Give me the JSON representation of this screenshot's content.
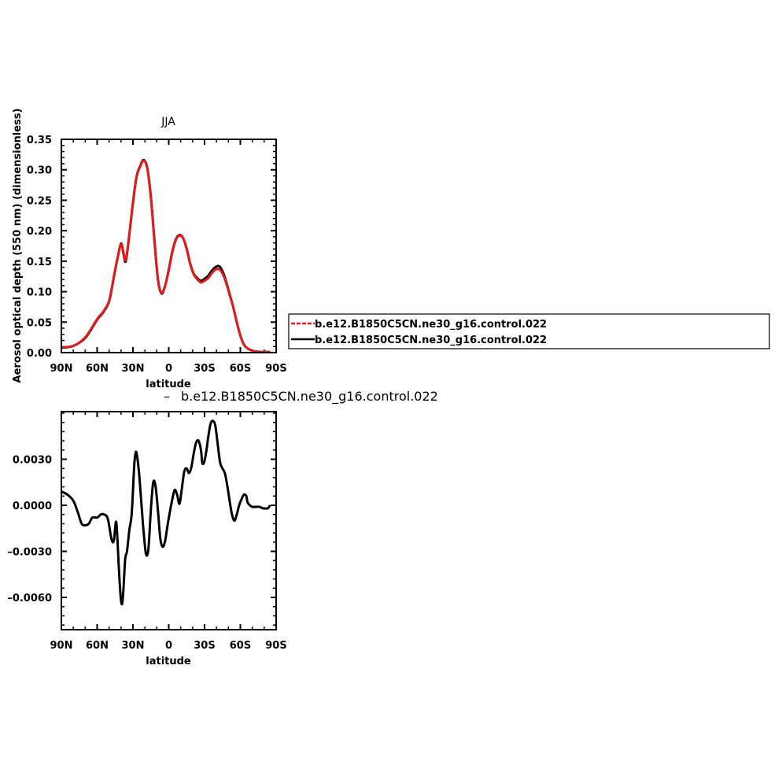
{
  "chart_data": [
    {
      "type": "line",
      "title": "JJA",
      "xlabel": "latitude",
      "ylabel": "Aerosol optical depth (550 nm) (dimensionless)",
      "xlim": [
        90,
        -90
      ],
      "ylim": [
        0,
        0.35
      ],
      "x_ticks": [
        90,
        60,
        30,
        0,
        -30,
        -60,
        -90
      ],
      "x_tick_labels": [
        "90N",
        "60N",
        "30N",
        "0",
        "30S",
        "60S",
        "90S"
      ],
      "y_ticks": [
        0,
        0.05,
        0.1,
        0.15,
        0.2,
        0.25,
        0.3,
        0.35
      ],
      "y_tick_labels": [
        "0.00",
        "0.05",
        "0.10",
        "0.15",
        "0.20",
        "0.25",
        "0.30",
        "0.35"
      ],
      "legend": {
        "placement": "right",
        "entries": [
          {
            "label": "b.e12.B1850C5CN.ne30_g16.control.022",
            "color": "#e41a1c",
            "dashed": true
          },
          {
            "label": "b.e12.B1850C5CN.ne30_g16.control.022",
            "color": "#000000",
            "dashed": false
          }
        ]
      },
      "series": [
        {
          "name": "b.e12.B1850C5CN.ne30_g16.control.022",
          "color": "#e41a1c",
          "x": [
            90,
            80,
            70,
            60,
            55,
            50,
            46,
            43,
            40,
            38,
            36,
            33,
            30,
            27,
            24,
            21,
            18,
            15,
            12,
            9,
            6,
            3,
            0,
            -3,
            -6,
            -9,
            -12,
            -15,
            -18,
            -21,
            -24,
            -27,
            -30,
            -33,
            -36,
            -39,
            -42,
            -45,
            -48,
            -51,
            -54,
            -57,
            -60,
            -63,
            -66,
            -69,
            -72,
            -75,
            -80,
            -85
          ],
          "y": [
            0.009,
            0.011,
            0.025,
            0.055,
            0.067,
            0.085,
            0.125,
            0.155,
            0.178,
            0.165,
            0.152,
            0.195,
            0.245,
            0.288,
            0.305,
            0.315,
            0.302,
            0.255,
            0.185,
            0.12,
            0.098,
            0.11,
            0.135,
            0.165,
            0.185,
            0.192,
            0.188,
            0.17,
            0.145,
            0.128,
            0.12,
            0.115,
            0.118,
            0.122,
            0.13,
            0.136,
            0.137,
            0.13,
            0.115,
            0.095,
            0.075,
            0.05,
            0.028,
            0.013,
            0.007,
            0.004,
            0.002,
            0.0015,
            0.001,
            0.001
          ]
        },
        {
          "name": "b.e12.B1850C5CN.ne30_g16.control.022",
          "color": "#000000",
          "x": [
            90,
            80,
            70,
            60,
            55,
            50,
            46,
            43,
            40,
            38,
            36,
            33,
            30,
            27,
            24,
            21,
            18,
            15,
            12,
            9,
            6,
            3,
            0,
            -3,
            -6,
            -9,
            -12,
            -15,
            -18,
            -21,
            -24,
            -27,
            -30,
            -33,
            -36,
            -39,
            -42,
            -45,
            -48,
            -51,
            -54,
            -57,
            -60,
            -63,
            -66,
            -69,
            -72,
            -75,
            -80,
            -85
          ],
          "y": [
            0.008,
            0.011,
            0.024,
            0.054,
            0.066,
            0.084,
            0.124,
            0.154,
            0.179,
            0.163,
            0.15,
            0.194,
            0.246,
            0.289,
            0.306,
            0.316,
            0.303,
            0.256,
            0.184,
            0.119,
            0.097,
            0.11,
            0.136,
            0.166,
            0.186,
            0.193,
            0.188,
            0.171,
            0.146,
            0.129,
            0.122,
            0.118,
            0.121,
            0.126,
            0.134,
            0.14,
            0.142,
            0.134,
            0.117,
            0.096,
            0.075,
            0.05,
            0.028,
            0.013,
            0.007,
            0.004,
            0.002,
            0.0015,
            0.001,
            0.001
          ]
        }
      ]
    },
    {
      "type": "line",
      "title": "b.e12.B1850C5CN.ne30_g16.control.022",
      "title_prefix": "–",
      "xlabel": "latitude",
      "ylabel": "",
      "xlim": [
        90,
        -90
      ],
      "ylim": [
        -0.0081,
        0.0061
      ],
      "x_ticks": [
        90,
        60,
        30,
        0,
        -30,
        -60,
        -90
      ],
      "x_tick_labels": [
        "90N",
        "60N",
        "30N",
        "0",
        "30S",
        "60S",
        "90S"
      ],
      "y_ticks": [
        -0.006,
        -0.003,
        0,
        0.003
      ],
      "y_tick_labels": [
        "–0.0060",
        "–0.0030",
        "0.0000",
        "0.0030"
      ],
      "series": [
        {
          "name": "",
          "color": "#000000",
          "x": [
            90,
            85,
            80,
            76,
            73,
            70,
            67,
            64,
            60,
            57,
            54,
            51,
            48,
            46,
            44,
            42,
            41,
            40,
            39,
            38,
            36.5,
            35,
            33,
            31,
            29,
            28,
            27,
            25,
            23,
            21,
            19,
            17,
            15,
            13,
            11,
            9,
            7,
            5,
            3,
            1,
            -1,
            -3,
            -5,
            -7,
            -9,
            -11,
            -13,
            -15,
            -17,
            -19,
            -21,
            -23,
            -25,
            -27,
            -28,
            -29,
            -30,
            -31,
            -32,
            -33,
            -35,
            -37,
            -39,
            -41,
            -43,
            -45,
            -47,
            -49,
            -51,
            -53,
            -55,
            -57,
            -59,
            -61,
            -63,
            -65,
            -66,
            -68,
            -70,
            -73,
            -76,
            -79,
            -81,
            -83,
            -85
          ],
          "y": [
            0.0009,
            0.0007,
            0.0003,
            -0.0005,
            -0.0012,
            -0.0013,
            -0.0012,
            -0.0008,
            -0.0008,
            -0.0006,
            -0.0006,
            -0.0009,
            -0.0022,
            -0.0023,
            -0.0011,
            -0.0038,
            -0.0052,
            -0.0062,
            -0.0064,
            -0.0055,
            -0.0035,
            -0.003,
            -0.0016,
            -0.0005,
            0.0025,
            0.0033,
            0.0034,
            0.0022,
            0.0002,
            -0.0018,
            -0.0032,
            -0.0028,
            -0.0003,
            0.0015,
            0.0012,
            -0.0004,
            -0.0022,
            -0.0027,
            -0.0023,
            -0.0013,
            -0.0004,
            0.0004,
            0.001,
            0.0007,
            0.0001,
            0.0011,
            0.0022,
            0.0024,
            0.0021,
            0.0025,
            0.0034,
            0.0041,
            0.0042,
            0.0036,
            0.0028,
            0.0027,
            0.0029,
            0.0033,
            0.0038,
            0.0044,
            0.0053,
            0.0055,
            0.0052,
            0.004,
            0.0028,
            0.0024,
            0.0021,
            0.0013,
            0.0003,
            -0.0006,
            -0.001,
            -0.0006,
            0.0,
            0.0004,
            0.0007,
            0.0006,
            0.0002,
            0.0,
            -0.0001,
            -0.0001,
            -0.0001,
            -0.0002,
            -0.0002,
            -0.0002,
            0.0
          ]
        }
      ]
    }
  ]
}
